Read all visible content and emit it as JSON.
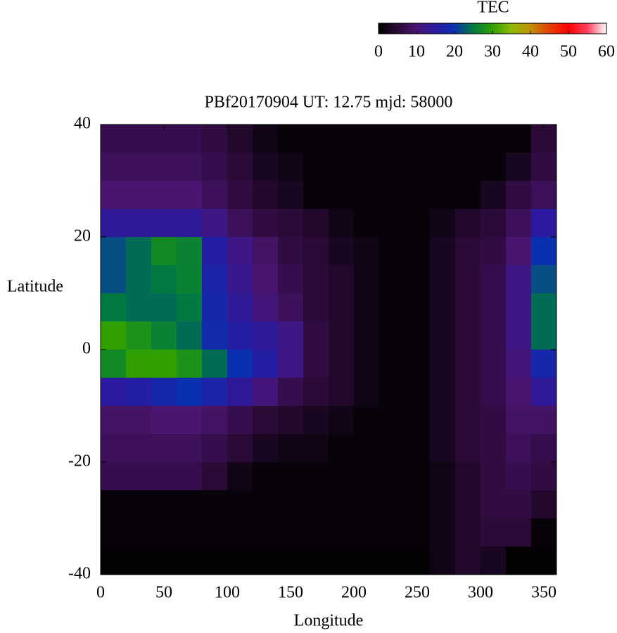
{
  "chart_data": {
    "type": "heatmap",
    "title": "PBf20170904  UT: 12.75  mjd: 58000",
    "x_label": "Longitude",
    "y_label": "Latitude",
    "colorbar_label": "TEC",
    "xlim": [
      0,
      360
    ],
    "xticks": [
      0,
      50,
      100,
      150,
      200,
      250,
      300,
      350
    ],
    "ylim": [
      -40,
      40
    ],
    "yticks": [
      -40,
      -20,
      0,
      20,
      40
    ],
    "zlim": [
      0,
      60
    ],
    "zticks": [
      0,
      10,
      20,
      30,
      40,
      50,
      60
    ],
    "colormap": [
      "#000000",
      "#2a0a36",
      "#4a1570",
      "#2a1aa0",
      "#0a30b0",
      "#007a40",
      "#30a000",
      "#90b800",
      "#c09000",
      "#e04000",
      "#ff0000",
      "#ff4060",
      "#ffffff"
    ],
    "x": [
      10,
      30,
      50,
      70,
      90,
      110,
      130,
      150,
      170,
      190,
      210,
      230,
      250,
      270,
      290,
      310,
      330,
      350
    ],
    "y": [
      37.5,
      32.5,
      27.5,
      22.5,
      17.5,
      12.5,
      7.5,
      2.5,
      -2.5,
      -7.5,
      -12.5,
      -17.5,
      -22.5,
      -27.5,
      -32.5,
      -37.5
    ],
    "values": [
      [
        7,
        7,
        7,
        7,
        6,
        4,
        2,
        1,
        1,
        1,
        1,
        1,
        1,
        1,
        1,
        1,
        1,
        5
      ],
      [
        8,
        8,
        8,
        8,
        7,
        5,
        3,
        2,
        1,
        1,
        1,
        1,
        1,
        1,
        1,
        1,
        3,
        6
      ],
      [
        10,
        10,
        10,
        10,
        8,
        6,
        4,
        3,
        1,
        1,
        1,
        1,
        1,
        1,
        1,
        3,
        6,
        8
      ],
      [
        14,
        14,
        14,
        14,
        12,
        8,
        6,
        5,
        4,
        2,
        1,
        1,
        1,
        2,
        4,
        5,
        8,
        15
      ],
      [
        22,
        24,
        27,
        26,
        16,
        12,
        9,
        6,
        5,
        3,
        2,
        1,
        1,
        3,
        5,
        6,
        10,
        20
      ],
      [
        22,
        24,
        25,
        26,
        17,
        13,
        10,
        7,
        5,
        4,
        2,
        1,
        1,
        3,
        5,
        7,
        12,
        22
      ],
      [
        25,
        24,
        24,
        25,
        18,
        14,
        11,
        8,
        5,
        4,
        2,
        1,
        1,
        3,
        5,
        7,
        12,
        24
      ],
      [
        30,
        28,
        26,
        24,
        19,
        16,
        14,
        12,
        6,
        4,
        2,
        1,
        1,
        3,
        5,
        7,
        12,
        24
      ],
      [
        27,
        30,
        30,
        28,
        24,
        20,
        16,
        12,
        6,
        4,
        2,
        1,
        1,
        3,
        5,
        7,
        11,
        18
      ],
      [
        15,
        16,
        18,
        20,
        17,
        14,
        11,
        7,
        5,
        4,
        2,
        1,
        1,
        3,
        5,
        7,
        10,
        14
      ],
      [
        9,
        9,
        10,
        10,
        9,
        7,
        5,
        4,
        3,
        2,
        1,
        1,
        1,
        3,
        5,
        6,
        9,
        9
      ],
      [
        8,
        8,
        8,
        8,
        7,
        5,
        3,
        2,
        2,
        1,
        1,
        1,
        1,
        3,
        5,
        6,
        8,
        7
      ],
      [
        7,
        7,
        7,
        7,
        5,
        2,
        1,
        1,
        1,
        1,
        1,
        1,
        1,
        2,
        4,
        6,
        7,
        6
      ],
      [
        1,
        1,
        1,
        1,
        1,
        1,
        1,
        1,
        1,
        1,
        1,
        1,
        1,
        2,
        4,
        6,
        6,
        4
      ],
      [
        1,
        1,
        1,
        1,
        1,
        1,
        1,
        1,
        1,
        1,
        1,
        1,
        1,
        2,
        4,
        5,
        5,
        1
      ],
      [
        0.5,
        0.5,
        0.5,
        0.5,
        0.5,
        0.5,
        0.5,
        0.5,
        0.5,
        0.5,
        0.5,
        0.5,
        0.5,
        2,
        4,
        3,
        0.5,
        0.5
      ]
    ]
  }
}
